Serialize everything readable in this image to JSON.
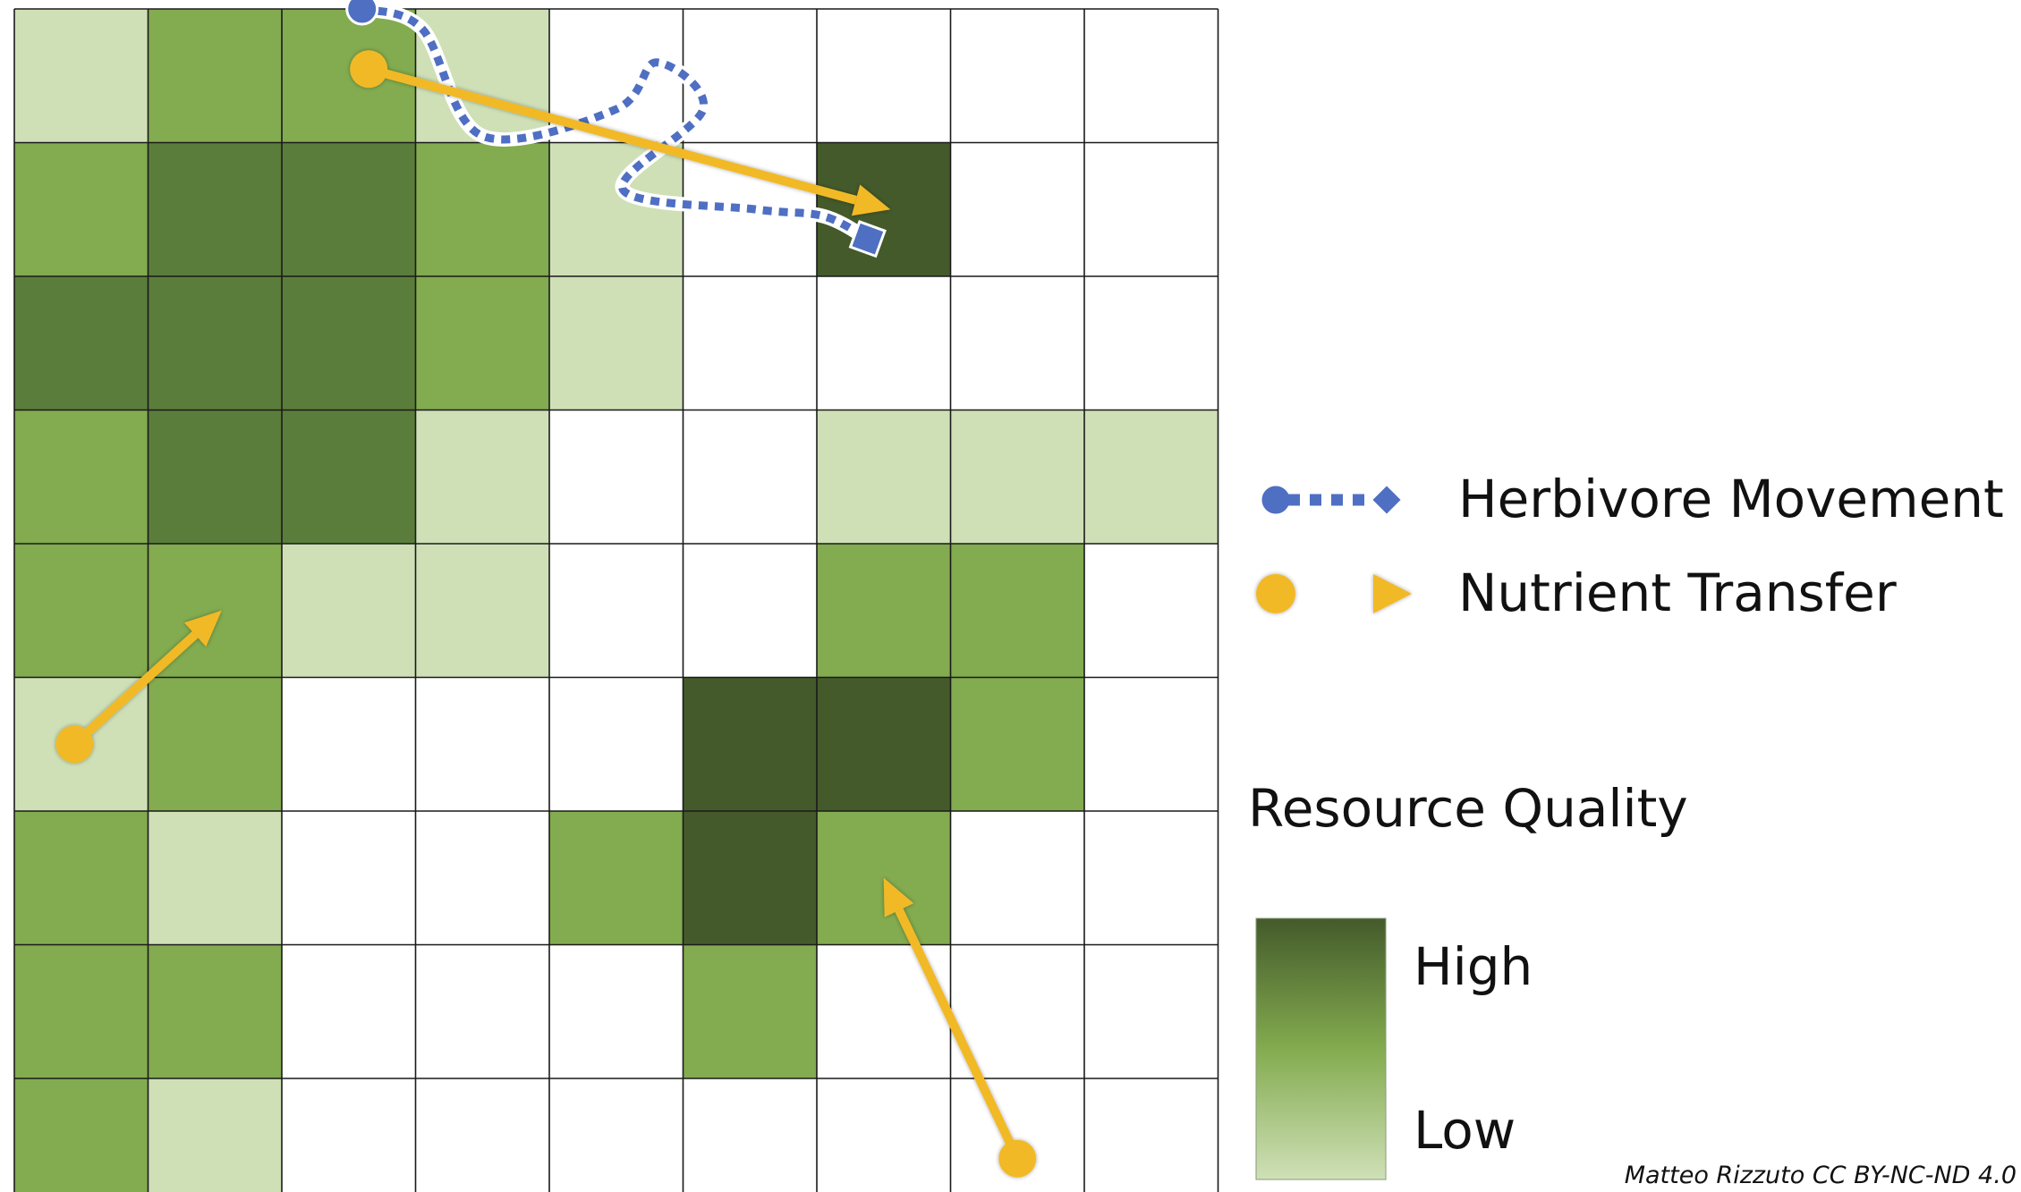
{
  "grid": {
    "rows": 9,
    "cols": 9,
    "levels": [
      [
        1,
        2,
        2,
        1,
        0,
        0,
        0,
        0,
        0
      ],
      [
        2,
        3,
        3,
        2,
        1,
        0,
        4,
        0,
        0
      ],
      [
        3,
        3,
        3,
        2,
        1,
        0,
        0,
        0,
        0
      ],
      [
        2,
        3,
        3,
        1,
        0,
        0,
        1,
        1,
        1
      ],
      [
        2,
        2,
        1,
        1,
        0,
        0,
        2,
        2,
        0
      ],
      [
        1,
        2,
        0,
        0,
        0,
        4,
        4,
        2,
        0
      ],
      [
        2,
        1,
        0,
        0,
        2,
        4,
        2,
        0,
        0
      ],
      [
        2,
        2,
        0,
        0,
        0,
        2,
        0,
        0,
        0
      ],
      [
        2,
        1,
        0,
        0,
        0,
        0,
        0,
        0,
        0
      ]
    ],
    "level_colors": [
      "#ffffff",
      "#cfe0b7",
      "#83ab4f",
      "#5b7d3b",
      "#445a2b"
    ],
    "line_color": "#1a1a1a"
  },
  "herbivore_movement": {
    "label": "Herbivore Movement",
    "color": "#4f6fc3",
    "start_marker": "circle",
    "end_marker": "diamond",
    "path_cells": [
      [
        0,
        2.6
      ],
      [
        0.15,
        3.05
      ],
      [
        0.95,
        3.5
      ],
      [
        0.75,
        4.5
      ],
      [
        0.4,
        4.8
      ],
      [
        0.75,
        5.15
      ],
      [
        1.35,
        4.55
      ],
      [
        1.5,
        5.55
      ],
      [
        1.55,
        6.05
      ],
      [
        1.72,
        6.38
      ]
    ]
  },
  "nutrient_transfer": {
    "label": "Nutrient Transfer",
    "color": "#f2b928",
    "arrows": [
      {
        "from": [
          0.45,
          2.65
        ],
        "to": [
          1.5,
          6.55
        ]
      },
      {
        "from": [
          5.5,
          0.45
        ],
        "to": [
          4.5,
          1.55
        ]
      },
      {
        "from": [
          8.6,
          7.5
        ],
        "to": [
          6.5,
          6.5
        ]
      }
    ]
  },
  "resource_quality": {
    "title": "Resource Quality",
    "high_label": "High",
    "low_label": "Low",
    "gradient": [
      "#445a2b",
      "#83ab4f",
      "#cfe0b7"
    ]
  },
  "credit": "Matteo Rizzuto  CC BY-NC-ND 4.0"
}
